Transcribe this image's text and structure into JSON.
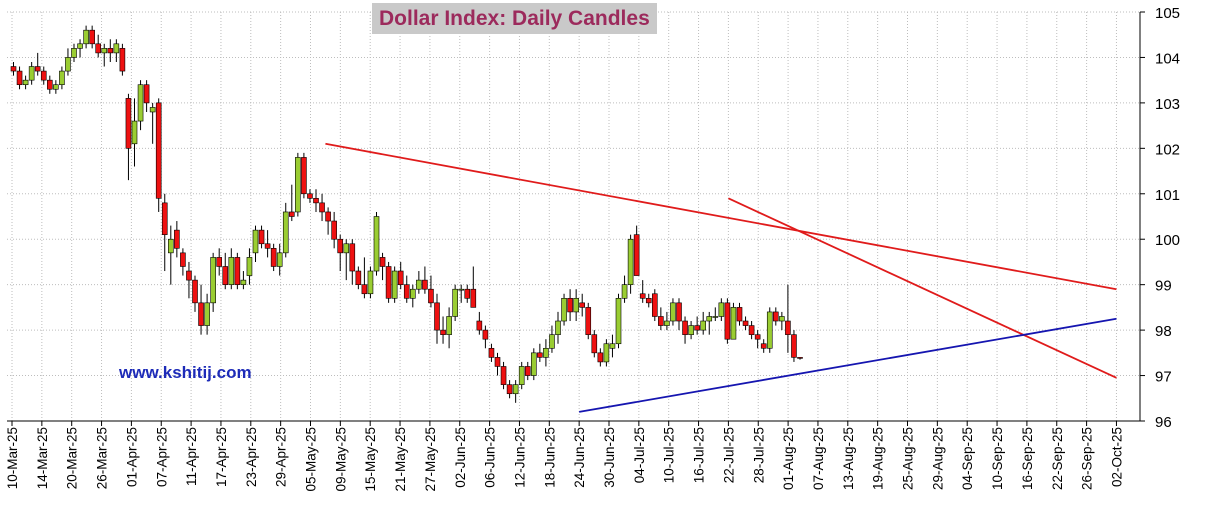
{
  "chart_data": {
    "type": "candlestick",
    "title": "Dollar Index:  Daily Candles",
    "annotation": "www.kshitij.com",
    "ylim": [
      96,
      105
    ],
    "y_ticks": [
      96,
      97,
      98,
      99,
      100,
      101,
      102,
      103,
      104,
      105
    ],
    "y_axis_side": "right",
    "x_tick_labels": [
      "10-Mar-25",
      "14-Mar-25",
      "20-Mar-25",
      "26-Mar-25",
      "01-Apr-25",
      "07-Apr-25",
      "11-Apr-25",
      "17-Apr-25",
      "23-Apr-25",
      "29-Apr-25",
      "05-May-25",
      "09-May-25",
      "15-May-25",
      "21-May-25",
      "27-May-25",
      "02-Jun-25",
      "06-Jun-25",
      "12-Jun-25",
      "18-Jun-25",
      "24-Jun-25",
      "30-Jun-25",
      "04-Jul-25",
      "10-Jul-25",
      "16-Jul-25",
      "22-Jul-25",
      "28-Jul-25",
      "01-Aug-25",
      "07-Aug-25",
      "13-Aug-25",
      "19-Aug-25",
      "25-Aug-25",
      "29-Aug-25",
      "04-Sep-25",
      "10-Sep-25",
      "16-Sep-25",
      "22-Sep-25",
      "26-Sep-25",
      "02-Oct-25"
    ],
    "grid": true,
    "colors": {
      "up": "#9acd32",
      "down": "#ee1111",
      "trend_upper": "#e01b1b",
      "trend_lower": "#1515b0"
    },
    "candles_ohlc": [
      [
        103.8,
        103.9,
        103.6,
        103.7
      ],
      [
        103.7,
        103.8,
        103.3,
        103.4
      ],
      [
        103.4,
        103.6,
        103.3,
        103.5
      ],
      [
        103.5,
        103.9,
        103.4,
        103.8
      ],
      [
        103.8,
        104.1,
        103.6,
        103.7
      ],
      [
        103.7,
        103.8,
        103.4,
        103.5
      ],
      [
        103.5,
        103.6,
        103.2,
        103.3
      ],
      [
        103.3,
        103.5,
        103.2,
        103.4
      ],
      [
        103.4,
        103.8,
        103.3,
        103.7
      ],
      [
        103.7,
        104.2,
        103.6,
        104.0
      ],
      [
        104.0,
        104.3,
        103.9,
        104.2
      ],
      [
        104.2,
        104.4,
        104.0,
        104.3
      ],
      [
        104.3,
        104.7,
        104.2,
        104.6
      ],
      [
        104.6,
        104.7,
        104.2,
        104.3
      ],
      [
        104.3,
        104.5,
        104.0,
        104.1
      ],
      [
        104.1,
        104.3,
        103.8,
        104.2
      ],
      [
        104.2,
        104.4,
        103.9,
        104.1
      ],
      [
        104.1,
        104.4,
        103.9,
        104.3
      ],
      [
        104.2,
        104.3,
        103.6,
        103.7
      ],
      [
        103.1,
        103.2,
        101.3,
        102.0
      ],
      [
        102.1,
        103.1,
        101.6,
        102.6
      ],
      [
        102.6,
        103.5,
        102.4,
        103.4
      ],
      [
        103.4,
        103.5,
        102.8,
        103.0
      ],
      [
        102.8,
        103.0,
        102.1,
        102.9
      ],
      [
        103.0,
        103.1,
        100.6,
        100.9
      ],
      [
        100.8,
        101.0,
        99.3,
        100.1
      ],
      [
        99.7,
        100.3,
        99.0,
        100.0
      ],
      [
        100.2,
        100.4,
        99.6,
        99.8
      ],
      [
        99.7,
        99.8,
        99.2,
        99.4
      ],
      [
        99.3,
        99.5,
        98.7,
        99.1
      ],
      [
        99.1,
        99.2,
        98.4,
        98.6
      ],
      [
        98.6,
        99.0,
        97.9,
        98.1
      ],
      [
        98.1,
        98.8,
        97.9,
        98.6
      ],
      [
        98.6,
        99.7,
        98.4,
        99.6
      ],
      [
        99.6,
        99.8,
        99.2,
        99.4
      ],
      [
        99.4,
        99.7,
        98.9,
        99.0
      ],
      [
        99.0,
        99.8,
        98.9,
        99.6
      ],
      [
        99.6,
        99.7,
        98.9,
        99.0
      ],
      [
        99.0,
        99.3,
        98.9,
        99.1
      ],
      [
        99.2,
        99.8,
        99.0,
        99.6
      ],
      [
        99.7,
        100.3,
        99.5,
        100.2
      ],
      [
        100.2,
        100.3,
        99.8,
        99.9
      ],
      [
        99.9,
        100.2,
        99.6,
        99.8
      ],
      [
        99.8,
        99.9,
        99.3,
        99.4
      ],
      [
        99.4,
        99.9,
        99.2,
        99.7
      ],
      [
        99.7,
        100.8,
        99.6,
        100.6
      ],
      [
        100.6,
        101.2,
        100.4,
        100.5
      ],
      [
        100.6,
        101.9,
        100.5,
        101.8
      ],
      [
        101.8,
        101.9,
        100.9,
        101.0
      ],
      [
        101.0,
        101.1,
        100.8,
        100.9
      ],
      [
        100.9,
        101.1,
        100.6,
        100.8
      ],
      [
        100.8,
        101.0,
        100.4,
        100.6
      ],
      [
        100.6,
        100.7,
        100.1,
        100.4
      ],
      [
        100.4,
        100.6,
        99.8,
        100.0
      ],
      [
        100.0,
        100.1,
        99.3,
        99.7
      ],
      [
        99.7,
        100.0,
        99.1,
        99.9
      ],
      [
        99.9,
        100.0,
        99.0,
        99.3
      ],
      [
        99.3,
        99.4,
        98.9,
        99.0
      ],
      [
        99.0,
        99.6,
        98.7,
        98.8
      ],
      [
        98.8,
        99.4,
        98.7,
        99.3
      ],
      [
        99.3,
        100.6,
        99.2,
        100.5
      ],
      [
        99.6,
        99.7,
        99.1,
        99.4
      ],
      [
        99.4,
        99.5,
        98.6,
        98.7
      ],
      [
        98.7,
        99.4,
        98.6,
        99.3
      ],
      [
        99.3,
        99.5,
        98.9,
        99.0
      ],
      [
        99.0,
        99.2,
        98.6,
        98.7
      ],
      [
        98.7,
        99.0,
        98.5,
        98.9
      ],
      [
        98.9,
        99.3,
        98.8,
        99.1
      ],
      [
        99.1,
        99.4,
        98.8,
        98.9
      ],
      [
        98.9,
        99.2,
        98.5,
        98.6
      ],
      [
        98.6,
        98.8,
        97.7,
        98.0
      ],
      [
        98.0,
        98.3,
        97.7,
        97.9
      ],
      [
        97.9,
        98.5,
        97.6,
        98.3
      ],
      [
        98.3,
        99.0,
        98.2,
        98.9
      ],
      [
        98.9,
        99.0,
        98.6,
        98.9
      ],
      [
        98.9,
        99.0,
        98.6,
        98.7
      ],
      [
        98.9,
        99.4,
        98.5,
        98.5
      ],
      [
        98.2,
        98.4,
        97.9,
        98.0
      ],
      [
        98.0,
        98.1,
        97.6,
        97.8
      ],
      [
        97.6,
        97.7,
        97.3,
        97.4
      ],
      [
        97.4,
        97.5,
        97.0,
        97.2
      ],
      [
        97.2,
        97.3,
        96.7,
        96.8
      ],
      [
        96.8,
        96.9,
        96.5,
        96.6
      ],
      [
        96.6,
        96.9,
        96.4,
        96.8
      ],
      [
        96.8,
        97.3,
        96.7,
        97.2
      ],
      [
        97.2,
        97.3,
        96.9,
        97.0
      ],
      [
        97.0,
        97.6,
        96.9,
        97.5
      ],
      [
        97.5,
        97.7,
        97.3,
        97.4
      ],
      [
        97.4,
        97.8,
        97.2,
        97.6
      ],
      [
        97.6,
        98.1,
        97.5,
        97.9
      ],
      [
        97.9,
        98.4,
        97.7,
        98.2
      ],
      [
        98.2,
        98.8,
        98.1,
        98.7
      ],
      [
        98.7,
        98.9,
        98.2,
        98.4
      ],
      [
        98.4,
        98.9,
        98.2,
        98.7
      ],
      [
        98.6,
        98.8,
        98.3,
        98.5
      ],
      [
        98.5,
        98.6,
        97.8,
        97.9
      ],
      [
        97.9,
        98.0,
        97.4,
        97.5
      ],
      [
        97.5,
        97.6,
        97.2,
        97.3
      ],
      [
        97.3,
        97.8,
        97.2,
        97.7
      ],
      [
        97.6,
        97.9,
        97.4,
        97.7
      ],
      [
        97.7,
        98.8,
        97.6,
        98.7
      ],
      [
        98.7,
        99.2,
        98.6,
        99.0
      ],
      [
        99.0,
        100.1,
        98.8,
        100.0
      ],
      [
        100.1,
        100.3,
        99.2,
        99.2
      ],
      [
        98.8,
        99.1,
        98.6,
        98.7
      ],
      [
        98.7,
        98.8,
        98.5,
        98.6
      ],
      [
        98.8,
        98.9,
        98.2,
        98.3
      ],
      [
        98.3,
        98.5,
        98.0,
        98.1
      ],
      [
        98.1,
        98.4,
        98.0,
        98.2
      ],
      [
        98.2,
        98.7,
        98.1,
        98.6
      ],
      [
        98.6,
        98.7,
        98.0,
        98.2
      ],
      [
        98.2,
        98.3,
        97.7,
        97.9
      ],
      [
        97.9,
        98.2,
        97.8,
        98.1
      ],
      [
        98.1,
        98.3,
        97.9,
        98.0
      ],
      [
        98.0,
        98.4,
        97.9,
        98.2
      ],
      [
        98.2,
        98.4,
        97.9,
        98.3
      ],
      [
        98.3,
        98.5,
        98.2,
        98.3
      ],
      [
        98.3,
        98.7,
        98.2,
        98.6
      ],
      [
        98.6,
        98.7,
        97.7,
        97.8
      ],
      [
        97.8,
        98.6,
        97.8,
        98.5
      ],
      [
        98.5,
        98.6,
        98.1,
        98.2
      ],
      [
        98.2,
        98.3,
        98.0,
        98.1
      ],
      [
        98.1,
        98.2,
        97.8,
        97.9
      ],
      [
        97.9,
        98.0,
        97.6,
        97.8
      ],
      [
        97.7,
        97.8,
        97.5,
        97.6
      ],
      [
        97.6,
        98.5,
        97.5,
        98.4
      ],
      [
        98.4,
        98.5,
        98.1,
        98.2
      ],
      [
        98.2,
        98.4,
        98.0,
        98.3
      ],
      [
        98.2,
        99.0,
        97.5,
        97.9
      ],
      [
        97.9,
        98.0,
        97.3,
        97.4
      ],
      [
        97.4,
        97.4,
        97.35,
        97.38
      ]
    ],
    "trend_lines": [
      {
        "name": "upper-resistance",
        "points": [
          [
            "07-May-25",
            102.1
          ],
          [
            "02-Oct-25",
            98.9
          ]
        ]
      },
      {
        "name": "steep-resistance",
        "points": [
          [
            "22-Jul-25",
            100.9
          ],
          [
            "02-Oct-25",
            96.95
          ]
        ]
      },
      {
        "name": "rising-support",
        "points": [
          [
            "24-Jun-25",
            96.2
          ],
          [
            "02-Oct-25",
            98.25
          ]
        ]
      }
    ]
  }
}
